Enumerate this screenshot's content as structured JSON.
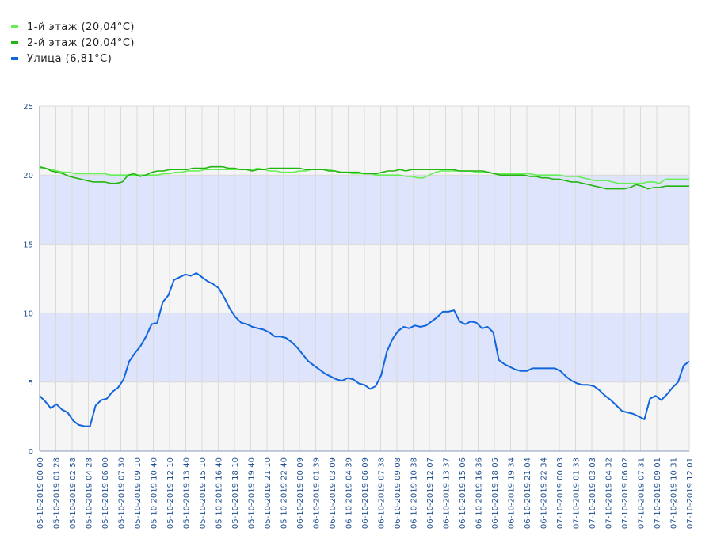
{
  "chart_data": {
    "type": "line",
    "ylim": [
      0,
      25
    ],
    "yticks": [
      0,
      5,
      10,
      15,
      20,
      25
    ],
    "bands": [
      [
        5,
        10
      ],
      [
        15,
        20
      ]
    ],
    "grid": true,
    "legend_position": "top-left",
    "x_tick_labels": [
      "05-10-2019 00:00",
      "05-10-2019 01:28",
      "05-10-2019 02:58",
      "05-10-2019 04:28",
      "05-10-2019 06:00",
      "05-10-2019 07:30",
      "05-10-2019 09:10",
      "05-10-2019 10:40",
      "05-10-2019 12:10",
      "05-10-2019 13:40",
      "05-10-2019 15:10",
      "05-10-2019 16:40",
      "05-10-2019 18:10",
      "05-10-2019 19:40",
      "05-10-2019 21:10",
      "05-10-2019 22:40",
      "06-10-2019 00:09",
      "06-10-2019 01:39",
      "06-10-2019 03:09",
      "06-10-2019 04:39",
      "06-10-2019 06:09",
      "06-10-2019 07:38",
      "06-10-2019 09:08",
      "06-10-2019 10:38",
      "06-10-2019 12:07",
      "06-10-2019 13:37",
      "06-10-2019 15:06",
      "06-10-2019 16:36",
      "06-10-2019 18:05",
      "06-10-2019 19:34",
      "06-10-2019 21:04",
      "06-10-2019 22:34",
      "07-10-2019 00:03",
      "07-10-2019 01:33",
      "07-10-2019 03:03",
      "07-10-2019 04:32",
      "07-10-2019 06:02",
      "07-10-2019 07:31",
      "07-10-2019 09:01",
      "07-10-2019 10:31",
      "07-10-2019 12:01"
    ],
    "series": [
      {
        "name": "1-й этаж (20,04°C)",
        "color": "#66ee55",
        "values": [
          20.5,
          20.5,
          20.4,
          20.3,
          20.2,
          20.2,
          20.1,
          20.1,
          20.1,
          20.1,
          20.1,
          20.1,
          20.0,
          20.0,
          20.0,
          20.0,
          20.0,
          20.0,
          20.0,
          20.0,
          20.0,
          20.1,
          20.1,
          20.2,
          20.2,
          20.3,
          20.3,
          20.3,
          20.4,
          20.4,
          20.4,
          20.4,
          20.4,
          20.4,
          20.4,
          20.4,
          20.4,
          20.5,
          20.4,
          20.3,
          20.3,
          20.2,
          20.2,
          20.2,
          20.3,
          20.3,
          20.4,
          20.4,
          20.4,
          20.4,
          20.3,
          20.2,
          20.2,
          20.1,
          20.1,
          20.1,
          20.1,
          20.0,
          20.0,
          20.0,
          20.0,
          20.0,
          19.9,
          19.9,
          19.8,
          19.8,
          20.0,
          20.2,
          20.3,
          20.3,
          20.3,
          20.3,
          20.3,
          20.3,
          20.2,
          20.2,
          20.2,
          20.1,
          20.1,
          20.1,
          20.1,
          20.1,
          20.1,
          20.1,
          20.0,
          20.0,
          20.0,
          20.0,
          20.0,
          19.9,
          19.9,
          19.9,
          19.8,
          19.7,
          19.6,
          19.6,
          19.6,
          19.5,
          19.4,
          19.4,
          19.4,
          19.4,
          19.4,
          19.5,
          19.5,
          19.4,
          19.7,
          19.7,
          19.7,
          19.7,
          19.7
        ]
      },
      {
        "name": "2-й этаж (20,04°C)",
        "color": "#22b511",
        "values": [
          20.6,
          20.5,
          20.3,
          20.2,
          20.1,
          19.9,
          19.8,
          19.7,
          19.6,
          19.5,
          19.5,
          19.5,
          19.4,
          19.4,
          19.5,
          20.0,
          20.1,
          19.9,
          20.0,
          20.2,
          20.3,
          20.3,
          20.4,
          20.4,
          20.4,
          20.4,
          20.5,
          20.5,
          20.5,
          20.6,
          20.6,
          20.6,
          20.5,
          20.5,
          20.4,
          20.4,
          20.3,
          20.4,
          20.4,
          20.5,
          20.5,
          20.5,
          20.5,
          20.5,
          20.5,
          20.4,
          20.4,
          20.4,
          20.4,
          20.3,
          20.3,
          20.2,
          20.2,
          20.2,
          20.2,
          20.1,
          20.1,
          20.1,
          20.2,
          20.3,
          20.3,
          20.4,
          20.3,
          20.4,
          20.4,
          20.4,
          20.4,
          20.4,
          20.4,
          20.4,
          20.4,
          20.3,
          20.3,
          20.3,
          20.3,
          20.3,
          20.2,
          20.1,
          20.0,
          20.0,
          20.0,
          20.0,
          20.0,
          19.9,
          19.9,
          19.8,
          19.8,
          19.7,
          19.7,
          19.6,
          19.5,
          19.5,
          19.4,
          19.3,
          19.2,
          19.1,
          19.0,
          19.0,
          19.0,
          19.0,
          19.1,
          19.3,
          19.2,
          19.0,
          19.1,
          19.1,
          19.2,
          19.2,
          19.2,
          19.2,
          19.2
        ]
      },
      {
        "name": "Улица (6,81°C)",
        "color": "#1166dd",
        "values": [
          4.0,
          3.6,
          3.1,
          3.4,
          3.0,
          2.8,
          2.2,
          1.9,
          1.8,
          1.8,
          3.3,
          3.7,
          3.8,
          4.3,
          4.6,
          5.2,
          6.5,
          7.1,
          7.6,
          8.3,
          9.2,
          9.3,
          10.8,
          11.3,
          12.4,
          12.6,
          12.8,
          12.7,
          12.9,
          12.6,
          12.3,
          12.1,
          11.8,
          11.1,
          10.3,
          9.7,
          9.3,
          9.2,
          9.0,
          8.9,
          8.8,
          8.6,
          8.3,
          8.3,
          8.2,
          7.9,
          7.5,
          7.0,
          6.5,
          6.2,
          5.9,
          5.6,
          5.4,
          5.2,
          5.1,
          5.3,
          5.2,
          4.9,
          4.8,
          4.5,
          4.7,
          5.5,
          7.2,
          8.1,
          8.7,
          9.0,
          8.9,
          9.1,
          9.0,
          9.1,
          9.4,
          9.7,
          10.1,
          10.1,
          10.2,
          9.4,
          9.2,
          9.4,
          9.3,
          8.9,
          9.0,
          8.6,
          6.6,
          6.3,
          6.1,
          5.9,
          5.8,
          5.8,
          6.0,
          6.0,
          6.0,
          6.0,
          6.0,
          5.8,
          5.4,
          5.1,
          4.9,
          4.8,
          4.8,
          4.7,
          4.4,
          4.0,
          3.7,
          3.3,
          2.9,
          2.8,
          2.7,
          2.5,
          2.3,
          3.8,
          4.0,
          3.7,
          4.1,
          4.6,
          5.0,
          6.2,
          6.5
        ]
      }
    ]
  }
}
